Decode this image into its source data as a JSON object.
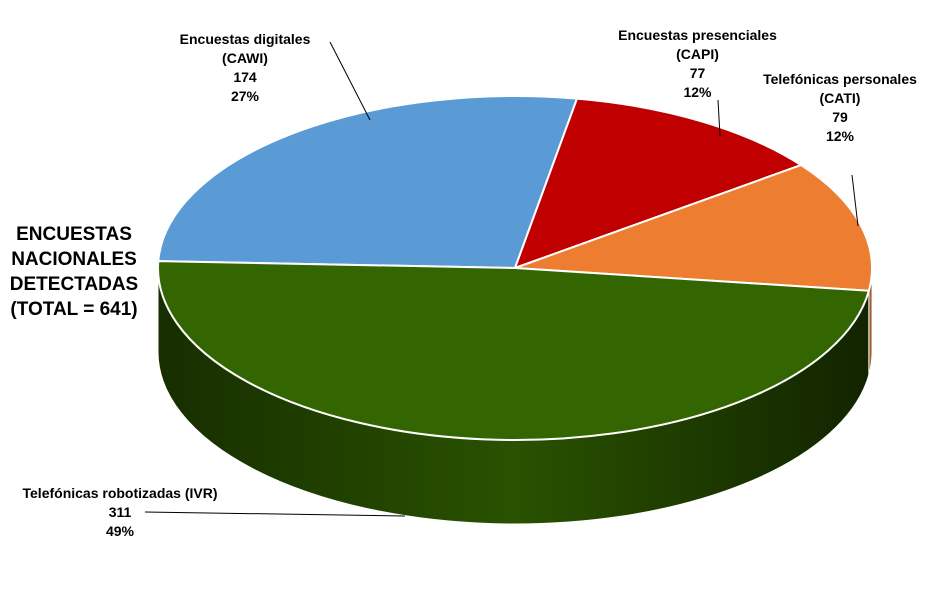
{
  "chart_data": {
    "type": "pie3d",
    "title": [
      "ENCUESTAS",
      "NACIONALES",
      "DETECTADAS",
      "(TOTAL = 641)"
    ],
    "categories": [
      "Encuestas digitales (CAWI)",
      "Encuestas presenciales (CAPI)",
      "Telefónicas personales (CATI)",
      "Telefónicas robotizadas (IVR)"
    ],
    "values": [
      174,
      77,
      79,
      311
    ],
    "percents": [
      27,
      12,
      12,
      49
    ],
    "percent_labels": [
      "27%",
      "12%",
      "12%",
      "49%"
    ],
    "colors": [
      "#5b9bd5",
      "#c00000",
      "#ed7d31",
      "#336600"
    ]
  }
}
